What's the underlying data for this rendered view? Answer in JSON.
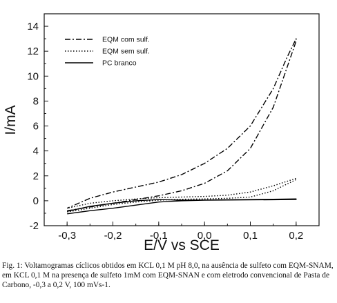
{
  "chart_data": {
    "type": "line",
    "title": "",
    "xlabel": "E/V vs SCE",
    "ylabel": "I/mA",
    "xlim": [
      -0.35,
      0.25
    ],
    "ylim": [
      -2,
      15
    ],
    "xticks": [
      -0.3,
      -0.2,
      -0.1,
      0.0,
      0.1,
      0.2
    ],
    "xtick_labels": [
      "-0,3",
      "-0,2",
      "-0,1",
      "0,0",
      "0,1",
      "0,2"
    ],
    "yticks": [
      -2,
      0,
      2,
      4,
      6,
      8,
      10,
      12,
      14
    ],
    "ytick_labels": [
      "-2",
      "0",
      "2",
      "4",
      "6",
      "8",
      "10",
      "12",
      "14"
    ],
    "grid": false,
    "legend_position": "top-left",
    "series": [
      {
        "name": "EQM com sulf.",
        "style": "dash-dot",
        "color": "#000000",
        "x": [
          -0.3,
          -0.25,
          -0.2,
          -0.15,
          -0.1,
          -0.05,
          0.0,
          0.05,
          0.1,
          0.15,
          0.2,
          0.2,
          0.18,
          0.15,
          0.1,
          0.05,
          0.0,
          -0.05,
          -0.1,
          -0.15,
          -0.2,
          -0.25,
          -0.3
        ],
        "y": [
          -0.8,
          -0.5,
          -0.2,
          0.1,
          0.4,
          0.8,
          1.4,
          2.4,
          4.2,
          7.5,
          12.8,
          13.0,
          11.5,
          9.0,
          6.0,
          4.2,
          3.0,
          2.1,
          1.5,
          1.1,
          0.7,
          0.2,
          -0.6
        ]
      },
      {
        "name": "EQM sem sulf.",
        "style": "dotted",
        "color": "#000000",
        "x": [
          -0.3,
          -0.25,
          -0.2,
          -0.15,
          -0.1,
          -0.05,
          0.0,
          0.05,
          0.1,
          0.15,
          0.2,
          0.2,
          0.15,
          0.1,
          0.05,
          0.0,
          -0.05,
          -0.1,
          -0.15,
          -0.2,
          -0.25,
          -0.3
        ],
        "y": [
          -0.9,
          -0.6,
          -0.3,
          -0.1,
          0.05,
          0.12,
          0.15,
          0.2,
          0.3,
          0.8,
          1.7,
          1.8,
          1.2,
          0.7,
          0.45,
          0.35,
          0.3,
          0.25,
          0.15,
          0.0,
          -0.2,
          -0.6
        ]
      },
      {
        "name": "PC branco",
        "style": "solid",
        "color": "#000000",
        "x": [
          -0.3,
          -0.25,
          -0.2,
          -0.15,
          -0.1,
          -0.05,
          0.0,
          0.05,
          0.1,
          0.15,
          0.2,
          0.2,
          0.15,
          0.1,
          0.05,
          0.0,
          -0.05,
          -0.1,
          -0.15,
          -0.2,
          -0.25,
          -0.3
        ],
        "y": [
          -1.05,
          -0.8,
          -0.6,
          -0.35,
          -0.1,
          0.0,
          0.05,
          0.06,
          0.07,
          0.08,
          0.1,
          0.15,
          0.12,
          0.1,
          0.08,
          0.06,
          0.05,
          0.1,
          0.0,
          -0.2,
          -0.45,
          -0.85
        ]
      }
    ]
  },
  "caption": "Fig. 1: Voltamogramas cíclicos obtidos em KCL 0,1 M pH 8,0,  na ausência de sulfeto com EQM-SNAM, em KCL 0,1 M na presença de sulfeto 1mM com EQM-SNAN e com eletrodo convencional de Pasta de Carbono,  -0,3 a 0,2 V, 100 mVs-1."
}
